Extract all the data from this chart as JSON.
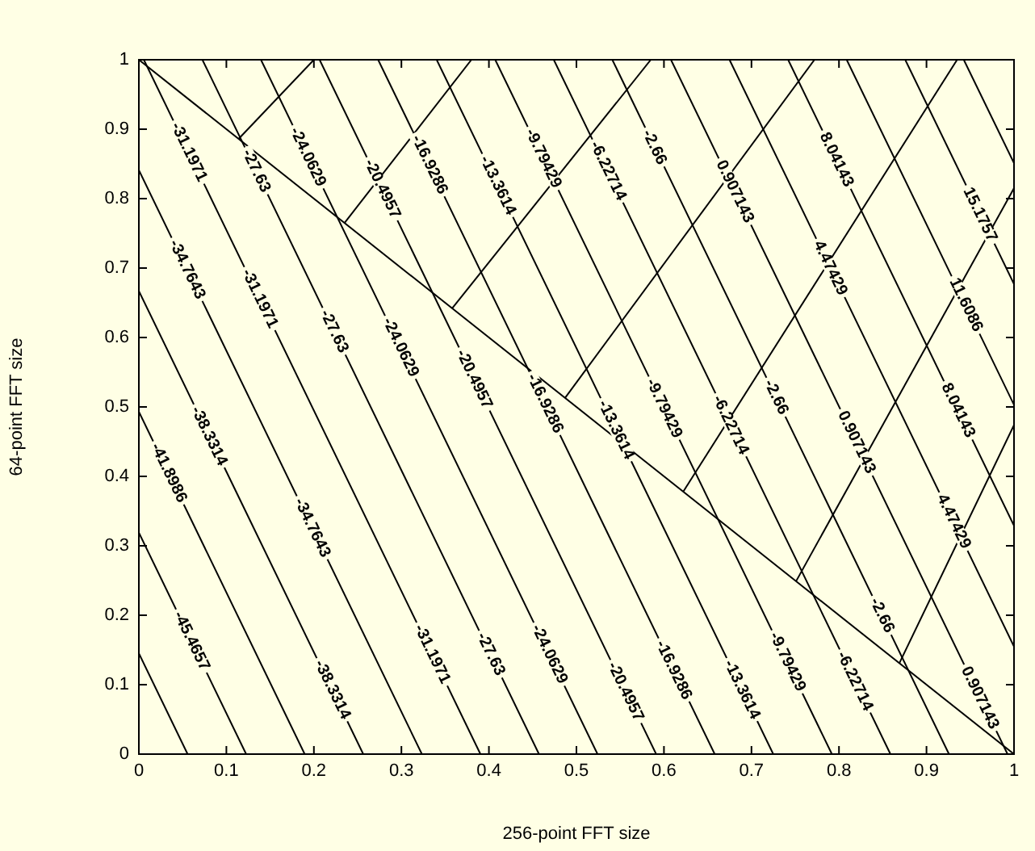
{
  "chart_data": {
    "type": "line",
    "xlabel": "256-point FFT size",
    "ylabel": "64-point FFT size",
    "xlim": [
      0,
      1
    ],
    "ylim": [
      0,
      1
    ],
    "xticks": [
      0,
      0.1,
      0.2,
      0.3,
      0.4,
      0.5,
      0.6,
      0.7,
      0.8,
      0.9,
      1
    ],
    "yticks": [
      0,
      0.1,
      0.2,
      0.3,
      0.4,
      0.5,
      0.6,
      0.7,
      0.8,
      0.9,
      1
    ],
    "marker": "none",
    "series": [
      {
        "color": "#000000",
        "x": [
          0,
          0.0557
        ],
        "values": [
          0.145,
          0
        ]
      },
      {
        "color": "#000000",
        "x": [
          0,
          0.1226
        ],
        "values": [
          0.319,
          0
        ]
      },
      {
        "color": "#000000",
        "x": [
          0,
          0.1895
        ],
        "values": [
          0.493,
          0
        ]
      },
      {
        "color": "#000000",
        "x": [
          0,
          0.2564
        ],
        "values": [
          0.667,
          0
        ]
      },
      {
        "color": "#000000",
        "x": [
          0,
          0.3234
        ],
        "values": [
          0.841,
          0
        ]
      },
      {
        "color": "#000000",
        "x": [
          0.0057,
          0.3903
        ],
        "values": [
          1,
          0
        ]
      },
      {
        "color": "#000000",
        "x": [
          0.0726,
          0.4572
        ],
        "values": [
          1,
          0
        ]
      },
      {
        "color": "#000000",
        "x": [
          0.1395,
          0.5241
        ],
        "values": [
          1,
          0
        ]
      },
      {
        "color": "#000000",
        "x": [
          0.2065,
          0.5911
        ],
        "values": [
          1,
          0
        ]
      },
      {
        "color": "#000000",
        "x": [
          0.2734,
          0.658
        ],
        "values": [
          1,
          0
        ]
      },
      {
        "color": "#000000",
        "x": [
          0.3403,
          0.7249
        ],
        "values": [
          1,
          0
        ]
      },
      {
        "color": "#000000",
        "x": [
          0.4072,
          0.7919
        ],
        "values": [
          1,
          0
        ]
      },
      {
        "color": "#000000",
        "x": [
          0.4741,
          0.8588
        ],
        "values": [
          1,
          0
        ]
      },
      {
        "color": "#000000",
        "x": [
          0.541,
          0.9257
        ],
        "values": [
          1,
          0
        ]
      },
      {
        "color": "#000000",
        "x": [
          0.608,
          0.9926
        ],
        "values": [
          1,
          0
        ]
      },
      {
        "color": "#000000",
        "x": [
          0.6749,
          1
        ],
        "values": [
          1,
          0.155
        ]
      },
      {
        "color": "#000000",
        "x": [
          0.7419,
          1
        ],
        "values": [
          1,
          0.329
        ]
      },
      {
        "color": "#000000",
        "x": [
          0.8088,
          1
        ],
        "values": [
          1,
          0.503
        ]
      },
      {
        "color": "#000000",
        "x": [
          0.8757,
          1
        ],
        "values": [
          1,
          0.677
        ]
      },
      {
        "color": "#000000",
        "x": [
          0.9426,
          1
        ],
        "values": [
          1,
          0.851
        ]
      },
      {
        "color": "#000000",
        "x": [
          0,
          1
        ],
        "values": [
          1,
          0
        ]
      },
      {
        "color": "#000000",
        "x": [
          0.114,
          0.2
        ],
        "values": [
          0.886,
          1
        ]
      },
      {
        "color": "#000000",
        "x": [
          0.235,
          0.38
        ],
        "values": [
          0.765,
          1
        ]
      },
      {
        "color": "#000000",
        "x": [
          0.358,
          0.585
        ],
        "values": [
          0.642,
          1
        ]
      },
      {
        "color": "#000000",
        "x": [
          0.487,
          0.772
        ],
        "values": [
          0.513,
          1
        ]
      },
      {
        "color": "#000000",
        "x": [
          0.622,
          0.935
        ],
        "values": [
          0.378,
          1
        ]
      },
      {
        "color": "#000000",
        "x": [
          0.751,
          1
        ],
        "values": [
          0.249,
          0.815
        ]
      },
      {
        "color": "#000000",
        "x": [
          0.869,
          1
        ],
        "values": [
          0.131,
          0.474
        ]
      }
    ],
    "annotations": [
      {
        "text": "-31.1971",
        "x": 0.057,
        "y": 0.867
      },
      {
        "text": "-27.63",
        "x": 0.134,
        "y": 0.84
      },
      {
        "text": "-24.0629",
        "x": 0.193,
        "y": 0.86
      },
      {
        "text": "-20.4957",
        "x": 0.278,
        "y": 0.814
      },
      {
        "text": "-16.9286",
        "x": 0.332,
        "y": 0.849
      },
      {
        "text": "-13.3614",
        "x": 0.41,
        "y": 0.819
      },
      {
        "text": "-9.79429",
        "x": 0.462,
        "y": 0.858
      },
      {
        "text": "-6.22714",
        "x": 0.536,
        "y": 0.84
      },
      {
        "text": "-2.66",
        "x": 0.589,
        "y": 0.874
      },
      {
        "text": "0.907143",
        "x": 0.681,
        "y": 0.81
      },
      {
        "text": "8.04143",
        "x": 0.797,
        "y": 0.856
      },
      {
        "text": "4.47429",
        "x": 0.79,
        "y": 0.7
      },
      {
        "text": "15.1757",
        "x": 0.961,
        "y": 0.777
      },
      {
        "text": "11.6086",
        "x": 0.945,
        "y": 0.647
      },
      {
        "text": "8.04143",
        "x": 0.936,
        "y": 0.495
      },
      {
        "text": "4.47429",
        "x": 0.931,
        "y": 0.335
      },
      {
        "text": "0.907143",
        "x": 0.82,
        "y": 0.449
      },
      {
        "text": "-2.66",
        "x": 0.728,
        "y": 0.514
      },
      {
        "text": "-6.22714",
        "x": 0.676,
        "y": 0.474
      },
      {
        "text": "-9.79429",
        "x": 0.6,
        "y": 0.498
      },
      {
        "text": "-13.3614",
        "x": 0.545,
        "y": 0.467
      },
      {
        "text": "-16.9286",
        "x": 0.464,
        "y": 0.505
      },
      {
        "text": "-20.4957",
        "x": 0.383,
        "y": 0.54
      },
      {
        "text": "-24.0629",
        "x": 0.299,
        "y": 0.586
      },
      {
        "text": "-27.63",
        "x": 0.223,
        "y": 0.609
      },
      {
        "text": "-31.1971",
        "x": 0.138,
        "y": 0.656
      },
      {
        "text": "-34.7643",
        "x": 0.055,
        "y": 0.698
      },
      {
        "text": "-38.3314",
        "x": 0.08,
        "y": 0.458
      },
      {
        "text": "-41.8986",
        "x": 0.034,
        "y": 0.405
      },
      {
        "text": "-45.4657",
        "x": 0.06,
        "y": 0.163
      },
      {
        "text": "-34.7643",
        "x": 0.198,
        "y": 0.326
      },
      {
        "text": "-38.3314",
        "x": 0.221,
        "y": 0.093
      },
      {
        "text": "-31.1971",
        "x": 0.335,
        "y": 0.144
      },
      {
        "text": "-27.63",
        "x": 0.402,
        "y": 0.144
      },
      {
        "text": "-24.0629",
        "x": 0.469,
        "y": 0.144
      },
      {
        "text": "-20.4957",
        "x": 0.556,
        "y": 0.09
      },
      {
        "text": "-16.9286",
        "x": 0.611,
        "y": 0.121
      },
      {
        "text": "-13.3614",
        "x": 0.689,
        "y": 0.093
      },
      {
        "text": "-9.79429",
        "x": 0.741,
        "y": 0.133
      },
      {
        "text": "-6.22714",
        "x": 0.818,
        "y": 0.105
      },
      {
        "text": "-2.66",
        "x": 0.849,
        "y": 0.2
      },
      {
        "text": "0.907143",
        "x": 0.961,
        "y": 0.081
      }
    ]
  }
}
